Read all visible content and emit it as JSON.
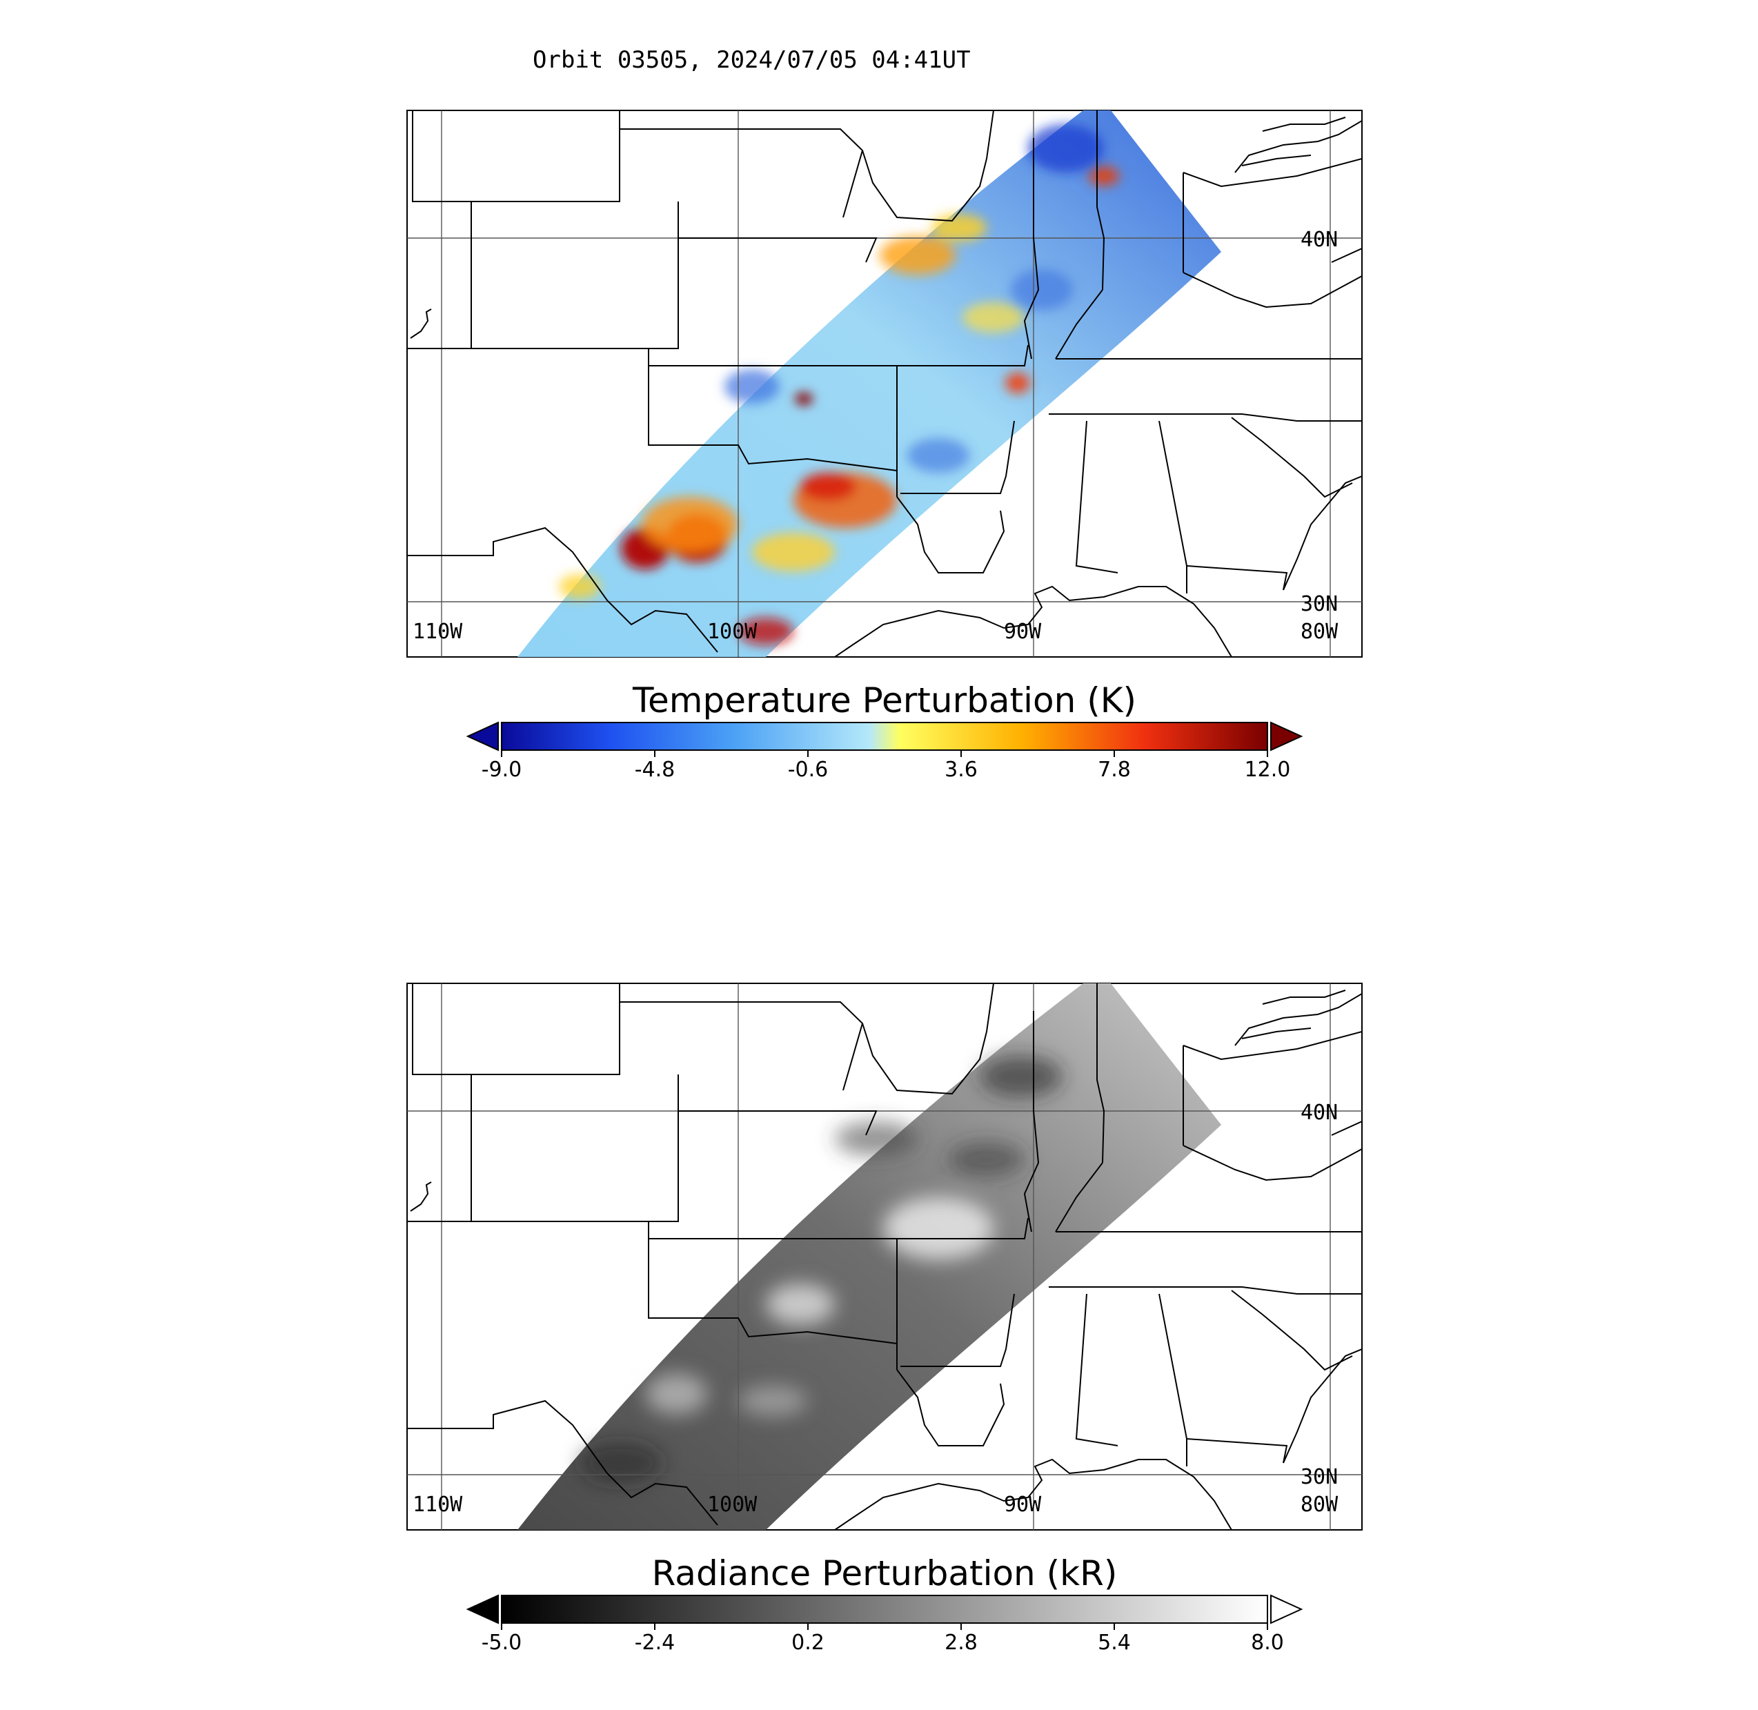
{
  "header": {
    "title": "Orbit 03505, 2024/07/05 04:41UT"
  },
  "panels": [
    {
      "id": "temperature",
      "lon_labels": [
        "110W",
        "100W",
        "90W",
        "80W"
      ],
      "lat_labels": [
        "40N",
        "30N"
      ],
      "colorbar": {
        "title": "Temperature Perturbation (K)",
        "ticks": [
          "-9.0",
          "-4.8",
          "-0.6",
          "3.6",
          "7.8",
          "12.0"
        ],
        "range": [
          -9.0,
          12.0
        ],
        "colors": [
          "#0a0a9a",
          "#1e50f0",
          "#4aa0f5",
          "#b4e8fa",
          "#ffff40",
          "#ffb000",
          "#f03010",
          "#7a0000"
        ]
      }
    },
    {
      "id": "radiance",
      "lon_labels": [
        "110W",
        "100W",
        "90W",
        "80W"
      ],
      "lat_labels": [
        "40N",
        "30N"
      ],
      "colorbar": {
        "title": "Radiance Perturbation (kR)",
        "ticks": [
          "-5.0",
          "-2.4",
          "0.2",
          "2.8",
          "5.4",
          "8.0"
        ],
        "range": [
          -5.0,
          8.0
        ],
        "colors": [
          "#000000",
          "#ffffff"
        ]
      }
    }
  ]
}
